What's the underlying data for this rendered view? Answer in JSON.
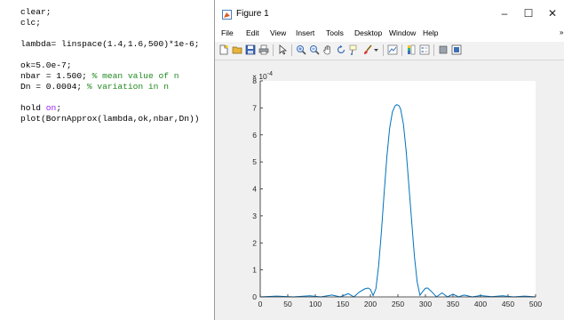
{
  "editor": {
    "lines": [
      {
        "parts": [
          {
            "t": "clear;",
            "c": "code"
          }
        ]
      },
      {
        "parts": [
          {
            "t": "clc;",
            "c": "code"
          }
        ]
      },
      {
        "parts": [
          {
            "t": "",
            "c": "code"
          }
        ]
      },
      {
        "parts": [
          {
            "t": "lambda= linspace(1.4,1.6,500)*1e-6;",
            "c": "code"
          }
        ]
      },
      {
        "parts": [
          {
            "t": "",
            "c": "code"
          }
        ]
      },
      {
        "parts": [
          {
            "t": "ok=5.0e-7;",
            "c": "code"
          }
        ]
      },
      {
        "parts": [
          {
            "t": "nbar = 1.500; ",
            "c": "code"
          },
          {
            "t": "% mean value of n",
            "c": "comment"
          }
        ]
      },
      {
        "parts": [
          {
            "t": "Dn = 0.0004; ",
            "c": "code"
          },
          {
            "t": "% variation in n",
            "c": "comment"
          }
        ]
      },
      {
        "parts": [
          {
            "t": "",
            "c": "code"
          }
        ]
      },
      {
        "parts": [
          {
            "t": "hold ",
            "c": "code"
          },
          {
            "t": "on",
            "c": "keyword"
          },
          {
            "t": ";",
            "c": "code"
          }
        ]
      },
      {
        "parts": [
          {
            "t": "plot(BornApprox(lambda,ok,nbar,Dn))",
            "c": "code"
          }
        ]
      }
    ]
  },
  "figure_window": {
    "title": "Figure 1",
    "controls": {
      "minimize": "–",
      "maximize": "☐",
      "close": "✕"
    },
    "menu": [
      "File",
      "Edit",
      "View",
      "Insert",
      "Tools",
      "Desktop",
      "Window",
      "Help"
    ],
    "menu_overflow": "»",
    "toolbar_icons": [
      "new-figure-icon",
      "open-file-icon",
      "save-icon",
      "print-icon",
      "pointer-icon",
      "zoom-in-icon",
      "zoom-out-icon",
      "pan-icon",
      "rotate-icon",
      "data-cursor-icon",
      "brush-icon",
      "brush-dropdown-icon",
      "link-plot-icon",
      "colorbar-icon",
      "legend-icon",
      "hide-plot-tools-icon",
      "show-plot-tools-icon"
    ]
  },
  "colors": {
    "line": "#0072bd",
    "keyword": "#a020f0",
    "comment": "#228b22",
    "figure_bg": "#f0f0f0"
  },
  "chart_data": {
    "type": "line",
    "title": "",
    "xlabel": "",
    "ylabel": "",
    "xlim": [
      0,
      500
    ],
    "ylim": [
      0,
      8
    ],
    "y_exponent_label": "× 10^{-4}",
    "y_exponent_base": "× 10",
    "y_exponent_power": "-4",
    "x_ticks": [
      0,
      50,
      100,
      150,
      200,
      250,
      300,
      350,
      400,
      450,
      500
    ],
    "y_ticks": [
      0,
      1,
      2,
      3,
      4,
      5,
      6,
      7,
      8
    ],
    "grid": false,
    "series": [
      {
        "x": [
          0,
          30,
          60,
          90,
          110,
          130,
          145,
          160,
          170,
          180,
          190,
          196,
          200,
          205,
          210,
          215,
          220,
          225,
          230,
          235,
          240,
          245,
          248,
          250,
          252,
          255,
          260,
          265,
          270,
          275,
          280,
          285,
          290,
          295,
          300,
          304,
          310,
          320,
          330,
          340,
          350,
          360,
          370,
          385,
          400,
          420,
          440,
          460,
          480,
          500
        ],
        "y": [
          0,
          0.03,
          0,
          0.04,
          0,
          0.07,
          0,
          0.12,
          0,
          0.18,
          0.3,
          0.33,
          0.28,
          0.05,
          0.3,
          1.15,
          2.4,
          3.85,
          5.2,
          6.25,
          6.85,
          7.08,
          7.12,
          7.1,
          7.08,
          6.95,
          6.4,
          5.4,
          4.1,
          2.8,
          1.5,
          0.55,
          0.06,
          0.2,
          0.32,
          0.33,
          0.22,
          0,
          0.15,
          0,
          0.1,
          0,
          0.07,
          0,
          0.05,
          0.01,
          0.04,
          0,
          0.03,
          0
        ]
      }
    ]
  }
}
